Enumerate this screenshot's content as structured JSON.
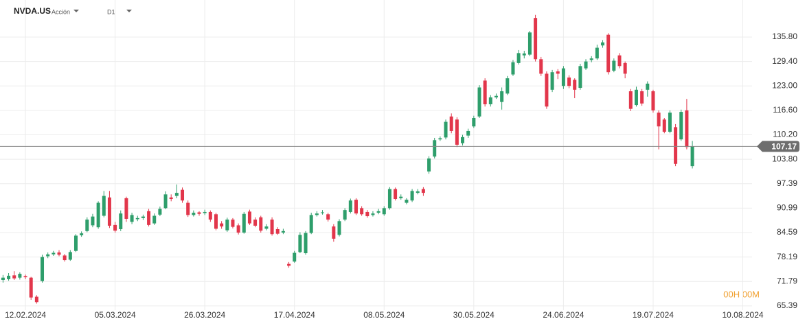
{
  "header": {
    "symbol": "NVDA.US",
    "instrument_type": "Acción",
    "timeframe": "D1",
    "countdown": "00H 00M"
  },
  "chart_data": {
    "type": "candlestick",
    "categories": [
      null,
      null,
      null,
      null,
      "12.02.2024",
      null,
      null,
      null,
      null,
      null,
      null,
      null,
      null,
      null,
      null,
      null,
      null,
      null,
      null,
      null,
      "05.03.2024",
      null,
      null,
      null,
      null,
      null,
      null,
      null,
      null,
      null,
      null,
      null,
      null,
      null,
      null,
      null,
      "26.03.2024",
      null,
      null,
      null,
      null,
      null,
      null,
      null,
      null,
      null,
      null,
      null,
      null,
      null,
      null,
      null,
      "17.04.2024",
      null,
      null,
      null,
      null,
      null,
      null,
      null,
      null,
      null,
      null,
      null,
      null,
      null,
      null,
      null,
      "08.05.2024",
      null,
      null,
      null,
      null,
      null,
      null,
      null,
      null,
      null,
      null,
      null,
      null,
      null,
      null,
      null,
      "30.05.2024",
      null,
      null,
      null,
      null,
      null,
      null,
      null,
      null,
      null,
      null,
      null,
      null,
      null,
      null,
      null,
      "24.06.2024",
      null,
      null,
      null,
      null,
      null,
      null,
      null,
      null,
      null,
      null,
      null,
      null,
      null,
      null,
      null,
      "19.07.2024",
      null,
      null,
      null,
      null,
      null,
      null,
      null,
      null,
      null,
      null,
      null,
      null,
      null,
      null,
      null,
      "10.08.2024",
      null
    ],
    "open": [
      72.2,
      72.4,
      73.4,
      72.8,
      73.2,
      72.8,
      67.8,
      71.9,
      78.4,
      78.9,
      79.4,
      78.6,
      77.5,
      79.8,
      83.9,
      85,
      86.5,
      86,
      89,
      93.8,
      86.6,
      85.5,
      93.6,
      87.4,
      88.1,
      88.4,
      90.2,
      87,
      89.3,
      91,
      93.8,
      94.2,
      95.8,
      92.4,
      89.2,
      89.9,
      89.7,
      90,
      89.4,
      87,
      85.2,
      88,
      86.5,
      84.6,
      90.1,
      88,
      88.6,
      85.6,
      88,
      85.5,
      84.6,
      76.4,
      77,
      79.5,
      79.2,
      84.5,
      89.2,
      89.7,
      89.4,
      86.2,
      84,
      88,
      90,
      93.2,
      91,
      90,
      89.2,
      89.8,
      89.4,
      91,
      96,
      93.6,
      92.4,
      93,
      95,
      96,
      100.6,
      104.5,
      109,
      109.5,
      115,
      114.2,
      108,
      110,
      112.4,
      115,
      124.4,
      118.2,
      120,
      118.8,
      121,
      126,
      129,
      131,
      131.2,
      140.8,
      130,
      126.2,
      122,
      126.8,
      123,
      125.2,
      124.6,
      122.5,
      127.6,
      129.8,
      130.2,
      133.6,
      136.4,
      127,
      131,
      129,
      121.6,
      118,
      121.6,
      122,
      121.6,
      116,
      114.2,
      111,
      112.2,
      109,
      116.6,
      102,
      null,
      null,
      null,
      null,
      null,
      null,
      null,
      null,
      null,
      null
    ],
    "high": [
      73.5,
      74,
      74.5,
      74.2,
      73.6,
      73,
      68.2,
      78.8,
      79.4,
      79.8,
      80,
      79,
      80,
      84.2,
      84.9,
      88.6,
      89.5,
      92.8,
      95.5,
      95.5,
      87.4,
      90.4,
      94,
      89.8,
      89,
      89.3,
      90.8,
      89.6,
      91.4,
      95.4,
      94.6,
      97.2,
      96.4,
      93,
      90.4,
      90.2,
      90.6,
      90.4,
      89.8,
      87.6,
      88.5,
      88.4,
      87,
      90,
      90.6,
      88.6,
      89,
      86.8,
      88.6,
      86,
      85.6,
      76.9,
      79.8,
      84.7,
      85,
      89.8,
      90.2,
      90.5,
      89.8,
      86.8,
      88.1,
      91,
      93.5,
      93.6,
      91.5,
      90.5,
      90.2,
      90.8,
      91.5,
      96.5,
      96.4,
      94.6,
      93.6,
      96,
      96,
      96.5,
      104.6,
      109.4,
      109.8,
      114.2,
      115.8,
      114.8,
      110.2,
      111.8,
      115.2,
      123.2,
      125,
      120.6,
      121,
      122.6,
      125.6,
      129.8,
      132.4,
      132.2,
      137.4,
      141.6,
      130.6,
      126.8,
      127.2,
      127.4,
      128.2,
      125.8,
      125,
      128.8,
      130,
      130.8,
      133.8,
      135,
      136.8,
      130.2,
      131.6,
      129.4,
      122.2,
      122.8,
      122.2,
      124.2,
      122,
      116.6,
      114.6,
      116.6,
      113,
      116.8,
      119.6,
      108.6,
      null,
      null,
      null,
      null,
      null,
      null,
      null,
      null,
      null,
      null
    ],
    "low": [
      71.5,
      72,
      72.2,
      72.3,
      72.4,
      67,
      66,
      71.5,
      77.9,
      78.5,
      78.4,
      77,
      77.2,
      79.5,
      83.5,
      84.7,
      86,
      85.6,
      88.6,
      85.8,
      84.6,
      85,
      87.4,
      86.8,
      87.6,
      87.9,
      86.2,
      86.6,
      88.9,
      90.7,
      92.8,
      93.6,
      92.4,
      88.7,
      88.8,
      89,
      89.2,
      87.4,
      85.2,
      85.6,
      84.8,
      85.7,
      84.1,
      84.3,
      86.6,
      86,
      84.6,
      85.2,
      83.8,
      84,
      84.2,
      75.4,
      76.7,
      79.2,
      78.8,
      84.2,
      88.8,
      89.3,
      87.5,
      82.2,
      83.6,
      87.6,
      89.6,
      89.2,
      89,
      88.5,
      88.8,
      89.4,
      89,
      90.6,
      93,
      93.2,
      92,
      92.6,
      94.6,
      94.2,
      100,
      104,
      108.6,
      109,
      110.6,
      107,
      107.4,
      109.4,
      112,
      114.6,
      117.6,
      117.6,
      119.6,
      116.8,
      120.6,
      125.6,
      128.6,
      130.2,
      130.8,
      129.4,
      125.6,
      117,
      121.4,
      124.8,
      122.2,
      122.4,
      119.8,
      122,
      127.2,
      129.2,
      129.8,
      133,
      126,
      126.6,
      127.6,
      125,
      116.4,
      117.6,
      117.8,
      120.2,
      116,
      106.4,
      110.6,
      110.6,
      102,
      108.6,
      106.4,
      101.4,
      null,
      null,
      null,
      null,
      null,
      null,
      null,
      null,
      null,
      null
    ],
    "close": [
      72.8,
      73.3,
      72.6,
      73.8,
      72.9,
      67.6,
      66.4,
      78.2,
      78.9,
      79.3,
      78.8,
      77.4,
      79.5,
      83.8,
      84.4,
      88,
      88.8,
      92.4,
      94.2,
      86.4,
      85.1,
      89.6,
      88.2,
      89.2,
      88.4,
      88.8,
      86.6,
      89,
      90.8,
      94.6,
      93.4,
      95,
      93,
      89.2,
      89.8,
      89.5,
      90,
      88,
      85.6,
      86.2,
      88,
      86.1,
      84.6,
      89.5,
      87,
      86.4,
      85.1,
      86.2,
      84.2,
      84.3,
      85,
      75.9,
      79.3,
      84,
      84.5,
      89.2,
      89.6,
      89.9,
      88,
      83,
      87.6,
      90.5,
      93,
      89.6,
      89.4,
      88.9,
      89.6,
      90.2,
      91,
      96,
      93.4,
      94,
      93.2,
      95.5,
      95.4,
      95,
      104,
      108.8,
      109.3,
      113.6,
      111.2,
      107.6,
      109.6,
      111.2,
      114.6,
      122.6,
      118.2,
      120,
      120.4,
      121.6,
      125,
      129.2,
      131.6,
      131.5,
      137,
      130,
      126.2,
      117.6,
      126.6,
      126.2,
      127.6,
      123,
      122,
      128.2,
      129.4,
      130.2,
      133,
      134.4,
      126.6,
      129.6,
      128.2,
      126.2,
      117,
      122,
      118.4,
      123.6,
      116.6,
      112.4,
      111,
      116,
      102.6,
      116.2,
      107,
      107.17,
      null,
      null,
      null,
      null,
      null,
      null,
      null,
      null,
      null,
      null
    ],
    "up_color": "#2e9e6b",
    "down_color": "#e2364b",
    "current_price": 107.17,
    "ylim": [
      64.3,
      145.5
    ],
    "yticks": [
      65.39,
      71.79,
      78.19,
      84.59,
      90.99,
      97.39,
      {
        "value": 103.8,
        "label": "103.80"
      },
      {
        "value": 110.2,
        "label": "110.20"
      },
      {
        "value": 116.6,
        "label": "116.60"
      },
      {
        "value": 123,
        "label": "123.00"
      },
      {
        "value": 129.4,
        "label": "129.40"
      },
      {
        "value": 135.8,
        "label": "135.80"
      }
    ],
    "grid": true
  }
}
